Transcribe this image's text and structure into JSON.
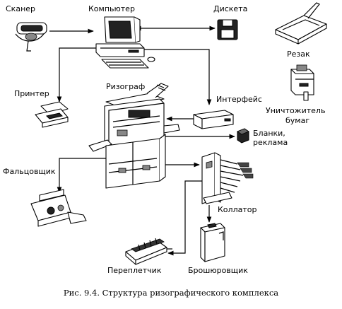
{
  "labels": {
    "scanner": "Сканер",
    "computer": "Компьютер",
    "diskette": "Дискета",
    "cutter": "Резак",
    "printer": "Принтер",
    "risograph": "Ризограф",
    "interface": "Интерфейс",
    "shredder_line1": "Уничтожитель",
    "shredder_line2": "бумаг",
    "forms_line1": "Бланки,",
    "forms_line2": "реклама",
    "folder": "Фальцовщик",
    "collator": "Коллатор",
    "binder": "Переплетчик",
    "stapler": "Брошюровщик"
  },
  "caption": "Рис. 9.4. Структура ризографического комплекса"
}
